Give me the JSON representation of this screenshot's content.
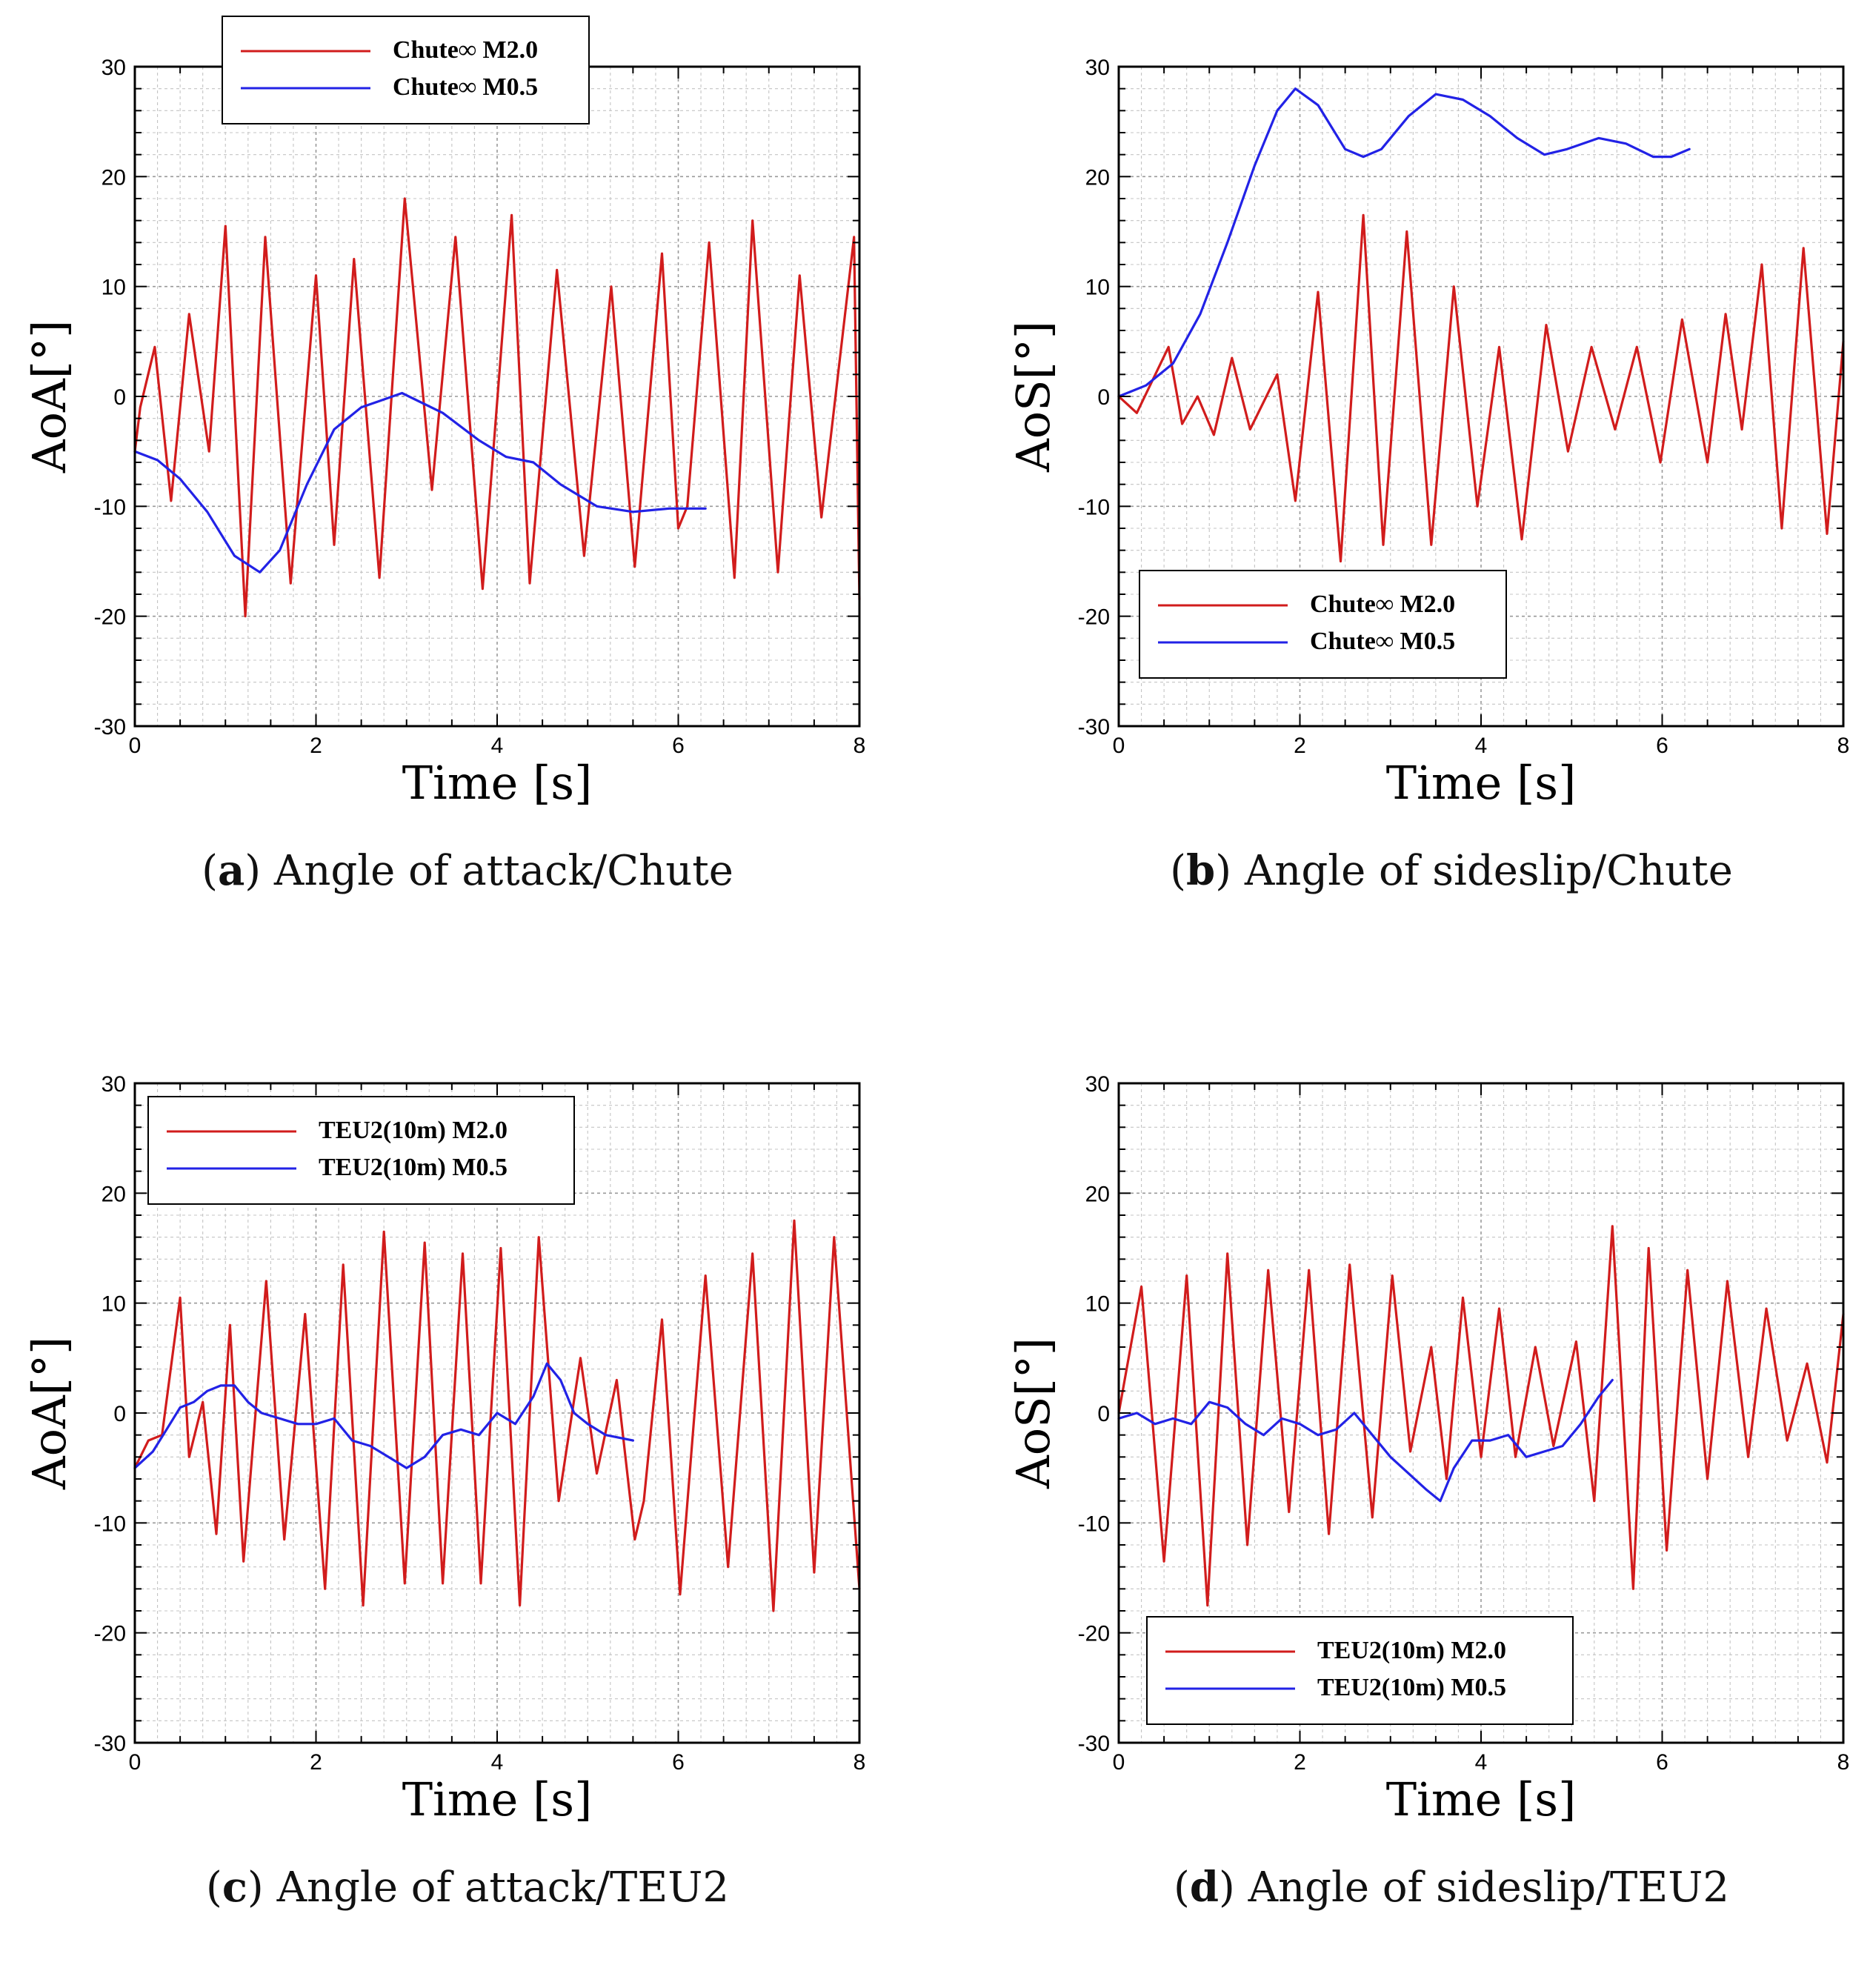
{
  "chart_data": [
    {
      "id": "a",
      "type": "line",
      "caption_letter": "a",
      "caption_text": "Angle of attack/Chute",
      "xlabel": "Time [s]",
      "ylabel": "AoA[°]",
      "xlim": [
        0,
        8
      ],
      "ylim": [
        -30,
        30
      ],
      "xticks": [
        0,
        2,
        4,
        6,
        8
      ],
      "yticks": [
        -30,
        -20,
        -10,
        0,
        10,
        20,
        30
      ],
      "grid": true,
      "legend_position": "top-left",
      "series": [
        {
          "name": "Chute∞ M2.0",
          "color": "#d11c1c",
          "x": [
            0,
            0.06,
            0.22,
            0.4,
            0.6,
            0.82,
            1.0,
            1.22,
            1.44,
            1.72,
            2.0,
            2.2,
            2.42,
            2.7,
            2.98,
            3.28,
            3.54,
            3.84,
            4.16,
            4.36,
            4.66,
            4.96,
            5.26,
            5.52,
            5.82,
            6.0,
            6.1,
            6.34,
            6.62,
            6.82,
            7.1,
            7.34,
            7.58,
            7.94,
            8.0
          ],
          "y": [
            -5,
            -1,
            4.5,
            -9.5,
            7.5,
            -5,
            15.5,
            -20,
            14.5,
            -17,
            11,
            -13.5,
            12.5,
            -16.5,
            18,
            -8.5,
            14.5,
            -17.5,
            16.5,
            -17,
            11.5,
            -14.5,
            10,
            -15.5,
            13,
            -12,
            -10,
            14,
            -16.5,
            16,
            -16,
            11,
            -11,
            14.5,
            -18.5
          ]
        },
        {
          "name": "Chute∞ M0.5",
          "color": "#2222e6",
          "x": [
            0,
            0.25,
            0.5,
            0.8,
            1.1,
            1.38,
            1.6,
            1.9,
            2.2,
            2.5,
            2.95,
            3.4,
            3.8,
            4.1,
            4.4,
            4.7,
            5.1,
            5.5,
            5.9,
            6.3
          ],
          "y": [
            -5,
            -5.8,
            -7.5,
            -10.5,
            -14.5,
            -16,
            -14,
            -8,
            -3,
            -1,
            0.3,
            -1.5,
            -4,
            -5.5,
            -6,
            -8,
            -10,
            -10.5,
            -10.2,
            -10.2
          ]
        }
      ]
    },
    {
      "id": "b",
      "type": "line",
      "caption_letter": "b",
      "caption_text": "Angle of sideslip/Chute",
      "xlabel": "Time [s]",
      "ylabel": "AoS[°]",
      "xlim": [
        0,
        8
      ],
      "ylim": [
        -30,
        30
      ],
      "xticks": [
        0,
        2,
        4,
        6,
        8
      ],
      "yticks": [
        -30,
        -20,
        -10,
        0,
        10,
        20,
        30
      ],
      "grid": true,
      "legend_position": "bottom-left",
      "series": [
        {
          "name": "Chute∞ M2.0",
          "color": "#d11c1c",
          "x": [
            0,
            0.2,
            0.55,
            0.7,
            0.87,
            1.05,
            1.25,
            1.45,
            1.75,
            1.95,
            2.2,
            2.45,
            2.7,
            2.92,
            3.18,
            3.45,
            3.7,
            3.96,
            4.2,
            4.45,
            4.72,
            4.96,
            5.22,
            5.48,
            5.72,
            5.98,
            6.22,
            6.5,
            6.7,
            6.88,
            7.1,
            7.32,
            7.56,
            7.82,
            8.0
          ],
          "y": [
            0,
            -1.5,
            4.5,
            -2.5,
            0,
            -3.5,
            3.5,
            -3,
            2,
            -9.5,
            9.5,
            -15,
            16.5,
            -13.5,
            15,
            -13.5,
            10,
            -10,
            4.5,
            -13,
            6.5,
            -5,
            4.5,
            -3,
            4.5,
            -6,
            7,
            -6,
            7.5,
            -3,
            12,
            -12,
            13.5,
            -12.5,
            5
          ]
        },
        {
          "name": "Chute∞ M0.5",
          "color": "#2222e6",
          "x": [
            0,
            0.3,
            0.6,
            0.9,
            1.2,
            1.5,
            1.75,
            1.95,
            2.2,
            2.5,
            2.7,
            2.9,
            3.2,
            3.5,
            3.8,
            4.1,
            4.4,
            4.7,
            4.95,
            5.3,
            5.6,
            5.9,
            6.1,
            6.3
          ],
          "y": [
            0,
            1,
            3,
            7.5,
            14,
            21,
            26,
            28,
            26.5,
            22.5,
            21.8,
            22.5,
            25.5,
            27.5,
            27,
            25.5,
            23.5,
            22,
            22.5,
            23.5,
            23,
            21.8,
            21.8,
            22.5
          ]
        }
      ]
    },
    {
      "id": "c",
      "type": "line",
      "caption_letter": "c",
      "caption_text": "Angle of attack/TEU2",
      "xlabel": "Time [s]",
      "ylabel": "AoA[°]",
      "xlim": [
        0,
        8
      ],
      "ylim": [
        -30,
        30
      ],
      "xticks": [
        0,
        2,
        4,
        6,
        8
      ],
      "yticks": [
        -30,
        -20,
        -10,
        0,
        10,
        20,
        30
      ],
      "grid": true,
      "legend_position": "top-left",
      "series": [
        {
          "name": "TEU2(10m) M2.0",
          "color": "#d11c1c",
          "x": [
            0,
            0.15,
            0.3,
            0.5,
            0.6,
            0.75,
            0.9,
            1.05,
            1.2,
            1.45,
            1.65,
            1.88,
            2.1,
            2.3,
            2.52,
            2.75,
            2.98,
            3.2,
            3.4,
            3.62,
            3.82,
            4.04,
            4.25,
            4.46,
            4.68,
            4.92,
            5.1,
            5.32,
            5.52,
            5.62,
            5.82,
            6.02,
            6.3,
            6.55,
            6.82,
            7.05,
            7.28,
            7.5,
            7.72,
            8.0
          ],
          "y": [
            -5,
            -2.5,
            -2,
            10.5,
            -4,
            1,
            -11,
            8,
            -13.5,
            12,
            -11.5,
            9,
            -16,
            13.5,
            -17.5,
            16.5,
            -15.5,
            15.5,
            -15.5,
            14.5,
            -15.5,
            15,
            -17.5,
            16,
            -8,
            5,
            -5.5,
            3,
            -11.5,
            -8,
            8.5,
            -16.5,
            12.5,
            -14,
            14.5,
            -18,
            17.5,
            -14.5,
            16,
            -16
          ]
        },
        {
          "name": "TEU2(10m) M0.5",
          "color": "#2222e6",
          "x": [
            0,
            0.2,
            0.35,
            0.5,
            0.65,
            0.8,
            0.95,
            1.1,
            1.25,
            1.4,
            1.6,
            1.8,
            2.0,
            2.2,
            2.4,
            2.6,
            2.8,
            3.0,
            3.2,
            3.4,
            3.6,
            3.8,
            4.0,
            4.2,
            4.4,
            4.55,
            4.7,
            4.85,
            5.0,
            5.2,
            5.5
          ],
          "y": [
            -5,
            -3.5,
            -1.5,
            0.5,
            1,
            2,
            2.5,
            2.5,
            1,
            0,
            -0.5,
            -1,
            -1,
            -0.5,
            -2.5,
            -3,
            -4,
            -5,
            -4,
            -2,
            -1.5,
            -2,
            0,
            -1,
            1.5,
            4.5,
            3,
            0,
            -1,
            -2,
            -2.5
          ]
        }
      ]
    },
    {
      "id": "d",
      "type": "line",
      "caption_letter": "d",
      "caption_text": "Angle of sideslip/TEU2",
      "xlabel": "Time [s]",
      "ylabel": "AoS[°]",
      "xlim": [
        0,
        8
      ],
      "ylim": [
        -30,
        30
      ],
      "xticks": [
        0,
        2,
        4,
        6,
        8
      ],
      "yticks": [
        -30,
        -20,
        -10,
        0,
        10,
        20,
        30
      ],
      "grid": true,
      "legend_position": "bottom-left",
      "series": [
        {
          "name": "TEU2(10m) M2.0",
          "color": "#d11c1c",
          "x": [
            0,
            0.25,
            0.5,
            0.75,
            0.98,
            1.2,
            1.42,
            1.65,
            1.88,
            2.1,
            2.32,
            2.55,
            2.8,
            3.02,
            3.22,
            3.45,
            3.62,
            3.8,
            4.0,
            4.2,
            4.38,
            4.6,
            4.8,
            5.05,
            5.25,
            5.45,
            5.68,
            5.85,
            6.05,
            6.28,
            6.5,
            6.72,
            6.95,
            7.15,
            7.38,
            7.6,
            7.82,
            8.0
          ],
          "y": [
            0,
            11.5,
            -13.5,
            12.5,
            -17.5,
            14.5,
            -12,
            13,
            -9,
            13,
            -11,
            13.5,
            -9.5,
            12.5,
            -3.5,
            6,
            -6,
            10.5,
            -4,
            9.5,
            -4,
            6,
            -3,
            6.5,
            -8,
            17,
            -16,
            15,
            -12.5,
            13,
            -6,
            12,
            -4,
            9.5,
            -2.5,
            4.5,
            -4.5,
            9
          ]
        },
        {
          "name": "TEU2(10m) M0.5",
          "color": "#2222e6",
          "x": [
            0,
            0.2,
            0.4,
            0.6,
            0.8,
            1.0,
            1.2,
            1.4,
            1.6,
            1.8,
            2.0,
            2.2,
            2.4,
            2.6,
            2.8,
            3.0,
            3.2,
            3.4,
            3.55,
            3.7,
            3.9,
            4.1,
            4.3,
            4.5,
            4.7,
            4.9,
            5.1,
            5.3,
            5.45
          ],
          "y": [
            -0.5,
            0,
            -1,
            -0.5,
            -1,
            1,
            0.5,
            -1,
            -2,
            -0.5,
            -1,
            -2,
            -1.5,
            0,
            -2,
            -4,
            -5.5,
            -7,
            -8,
            -5,
            -2.5,
            -2.5,
            -2,
            -4,
            -3.5,
            -3,
            -1,
            1.5,
            3
          ]
        }
      ]
    }
  ]
}
